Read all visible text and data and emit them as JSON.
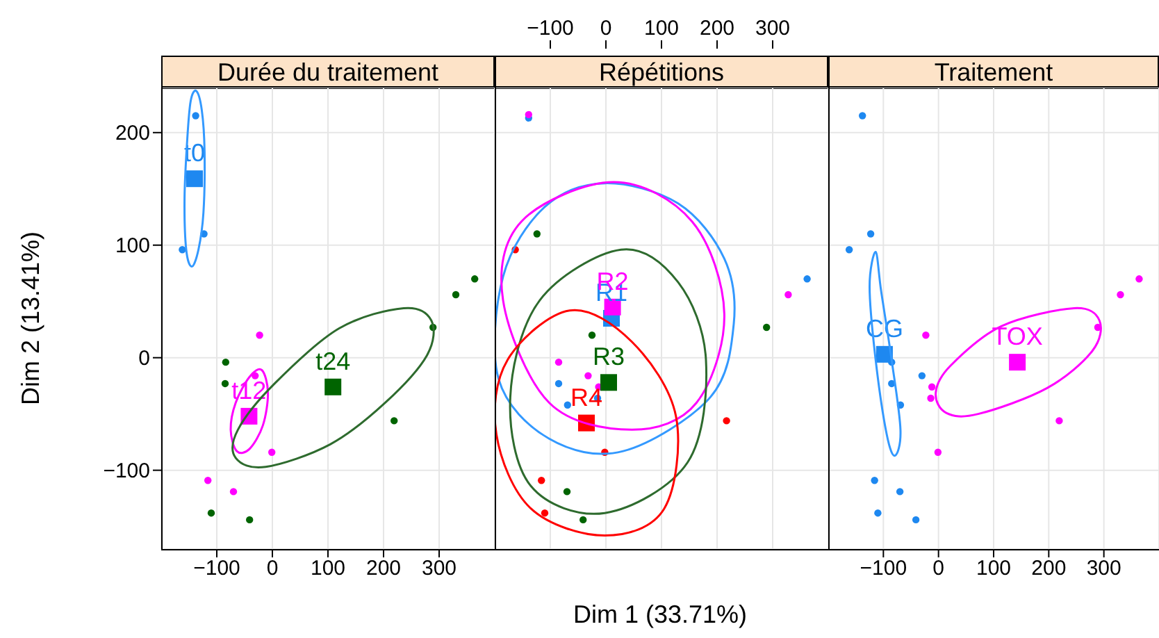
{
  "chart_data": [
    {
      "type": "scatter",
      "title": "Durée du traitement",
      "ylabel": "Dim 2 (13.41%)",
      "xlim": [
        -200,
        400
      ],
      "ylim": [
        -170,
        240
      ],
      "xticks": [
        -100,
        0,
        100,
        200,
        300
      ],
      "yticks": [
        -100,
        0,
        100,
        200
      ],
      "grid": true,
      "legend": false,
      "series": [
        {
          "type": "scatter",
          "marker": "circle",
          "color": "#1e88f0",
          "x": [
            -138,
            -123,
            -162
          ],
          "values": [
            215,
            110,
            96
          ]
        },
        {
          "type": "scatter",
          "marker": "circle",
          "color": "#ff00ff",
          "x": [
            -23,
            -31,
            -1,
            -116,
            -70
          ],
          "values": [
            20,
            -16,
            -84,
            -109,
            -119
          ]
        },
        {
          "type": "scatter",
          "marker": "circle",
          "color": "#006400",
          "x": [
            -84,
            -85,
            289,
            330,
            364,
            219,
            -110,
            -41
          ],
          "values": [
            -4,
            -23,
            27,
            56,
            70,
            -56,
            -138,
            -144
          ]
        },
        {
          "type": "scatter",
          "marker": "square",
          "name": "t0",
          "color": "#1e88f0",
          "x": [
            -140
          ],
          "values": [
            159
          ]
        },
        {
          "type": "scatter",
          "marker": "square",
          "name": "t12",
          "color": "#ff00ff",
          "x": [
            -42
          ],
          "values": [
            -52
          ]
        },
        {
          "type": "scatter",
          "marker": "square",
          "name": "t24",
          "color": "#006400",
          "x": [
            109
          ],
          "values": [
            -26
          ]
        }
      ]
    },
    {
      "type": "scatter",
      "title": "Répétitions",
      "xlabel": "Dim 1 (33.71%)",
      "xlim": [
        -200,
        400
      ],
      "ylim": [
        -170,
        240
      ],
      "xticks": [
        -100,
        0,
        100,
        200,
        300
      ],
      "yticks": [
        -100,
        0,
        100,
        200
      ],
      "grid": true,
      "legend": false,
      "tick_labels": "x",
      "series": [
        {
          "type": "scatter",
          "marker": "circle",
          "color": "#1e88f0",
          "x": [
            -139,
            362,
            -85,
            -69,
            -15
          ],
          "values": [
            213,
            70,
            -23,
            -42,
            -36
          ]
        },
        {
          "type": "scatter",
          "marker": "circle",
          "color": "#ff00ff",
          "x": [
            -139,
            -85,
            -32,
            -13,
            328
          ],
          "values": [
            216,
            -4,
            -16,
            -26,
            56
          ]
        },
        {
          "type": "scatter",
          "marker": "circle",
          "color": "#006400",
          "x": [
            -124,
            -25,
            289,
            -70,
            -41
          ],
          "values": [
            110,
            20,
            27,
            -119,
            -144
          ]
        },
        {
          "type": "scatter",
          "marker": "circle",
          "color": "#ff0000",
          "x": [
            -163,
            217,
            -2,
            -116,
            -110
          ],
          "values": [
            96,
            -56,
            -84,
            -109,
            -138
          ]
        },
        {
          "type": "scatter",
          "marker": "square",
          "name": "R1",
          "color": "#1e88f0",
          "x": [
            10
          ],
          "values": [
            35
          ]
        },
        {
          "type": "scatter",
          "marker": "square",
          "name": "R2",
          "color": "#ff00ff",
          "x": [
            12
          ],
          "values": [
            45
          ]
        },
        {
          "type": "scatter",
          "marker": "square",
          "name": "R3",
          "color": "#006400",
          "x": [
            5
          ],
          "values": [
            -22
          ]
        },
        {
          "type": "scatter",
          "marker": "square",
          "name": "R4",
          "color": "#ff0000",
          "x": [
            -35
          ],
          "values": [
            -58
          ]
        }
      ]
    },
    {
      "type": "scatter",
      "title": "Traitement",
      "xlim": [
        -200,
        400
      ],
      "ylim": [
        -170,
        240
      ],
      "xticks": [
        -100,
        0,
        100,
        200,
        300
      ],
      "yticks": [
        -100,
        0,
        100,
        200
      ],
      "grid": true,
      "legend": false,
      "tick_labels": "x",
      "series": [
        {
          "type": "scatter",
          "marker": "circle",
          "color": "#1e88f0",
          "x": [
            -138,
            -123,
            -162,
            -85,
            -30,
            -85,
            -69,
            -116,
            -70,
            -110,
            -41
          ],
          "values": [
            215,
            110,
            96,
            -4,
            -16,
            -23,
            -42,
            -109,
            -119,
            -138,
            -144
          ]
        },
        {
          "type": "scatter",
          "marker": "circle",
          "color": "#ff00ff",
          "x": [
            -23,
            -12,
            -14,
            -1,
            289,
            330,
            364,
            219
          ],
          "values": [
            20,
            -26,
            -36,
            -84,
            27,
            56,
            70,
            -56
          ]
        },
        {
          "type": "scatter",
          "marker": "square",
          "name": "CG",
          "color": "#1e88f0",
          "x": [
            -98
          ],
          "values": [
            3
          ]
        },
        {
          "type": "scatter",
          "marker": "square",
          "name": "TOX",
          "color": "#ff00ff",
          "x": [
            143
          ],
          "values": [
            -4
          ]
        }
      ]
    }
  ]
}
